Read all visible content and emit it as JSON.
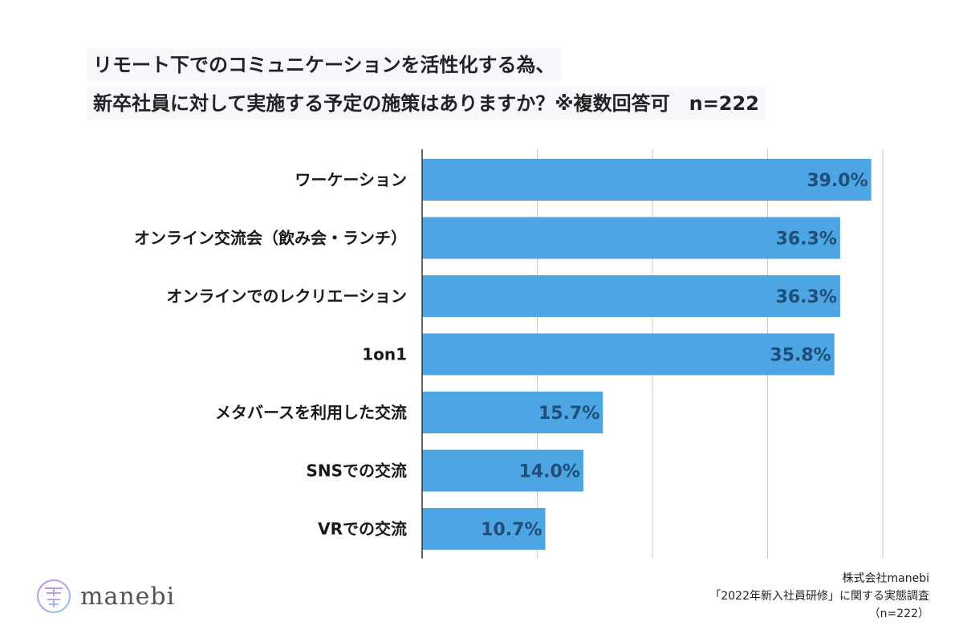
{
  "title": {
    "line1": "リモート下でのコミュニケーションを活性化する為、",
    "line2": "新卒社員に対して実施する予定の施策はありますか？※複数回答可　n=222"
  },
  "chart_data": {
    "type": "bar",
    "orientation": "horizontal",
    "categories": [
      "ワーケーション",
      "オンライン交流会（飲み会・ランチ）",
      "オンラインでのレクリエーション",
      "1on1",
      "メタバースを利用した交流",
      "SNSでの交流",
      "VRでの交流"
    ],
    "values": [
      39.0,
      36.3,
      36.3,
      35.8,
      15.7,
      14.0,
      10.7
    ],
    "value_labels": [
      "39.0%",
      "36.3%",
      "36.3%",
      "35.8%",
      "15.7%",
      "14.0%",
      "10.7%"
    ],
    "xlim": [
      0,
      40
    ],
    "grid": true,
    "bar_color": "#4da6e3"
  },
  "logo": {
    "text": "manebi"
  },
  "source": {
    "line1": "株式会社manebi",
    "line2": "「2022年新入社員研修」に関する実態調査",
    "line3": "（n=222）"
  }
}
